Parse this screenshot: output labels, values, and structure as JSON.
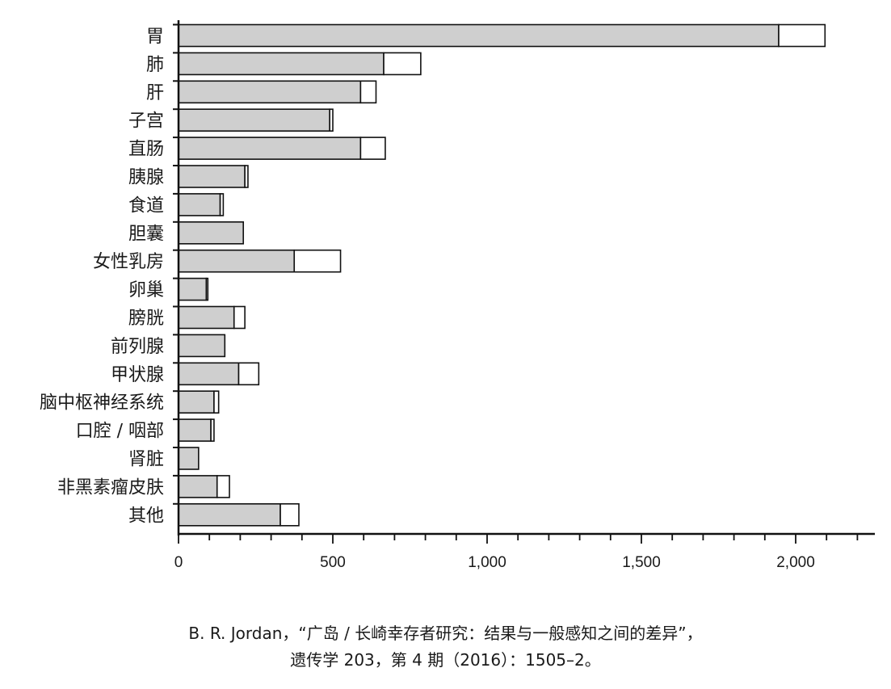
{
  "chart_data": {
    "type": "bar",
    "orientation": "horizontal",
    "stacked": true,
    "categories": [
      "胃",
      "肺",
      "肝",
      "子宫",
      "直肠",
      "胰腺",
      "食道",
      "胆囊",
      "女性乳房",
      "卵巢",
      "膀胱",
      "前列腺",
      "甲状腺",
      "脑中枢神经系统",
      "口腔 / 咽部",
      "肾脏",
      "非黑素瘤皮肤",
      "其他"
    ],
    "series": [
      {
        "fill": "#cfcfcf",
        "values": [
          1945,
          665,
          590,
          490,
          590,
          215,
          135,
          210,
          375,
          90,
          180,
          150,
          195,
          115,
          105,
          65,
          125,
          330
        ]
      },
      {
        "fill": "#ffffff",
        "values": [
          150,
          120,
          50,
          10,
          80,
          10,
          10,
          0,
          150,
          5,
          35,
          0,
          65,
          15,
          10,
          0,
          40,
          60
        ]
      }
    ],
    "xlim": [
      0,
      2270
    ],
    "xticks": [
      0,
      500,
      1000,
      1500,
      2000
    ],
    "xtick_labels": [
      "0",
      "500",
      "1,000",
      "1,500",
      "2,000"
    ],
    "grid": false
  },
  "caption": {
    "line1": "B. R. Jordan，“广岛 / 长崎幸存者研究：结果与一般感知之间的差异”，",
    "line2": "遗传学 203，第 4 期（2016）：1505–2。"
  }
}
